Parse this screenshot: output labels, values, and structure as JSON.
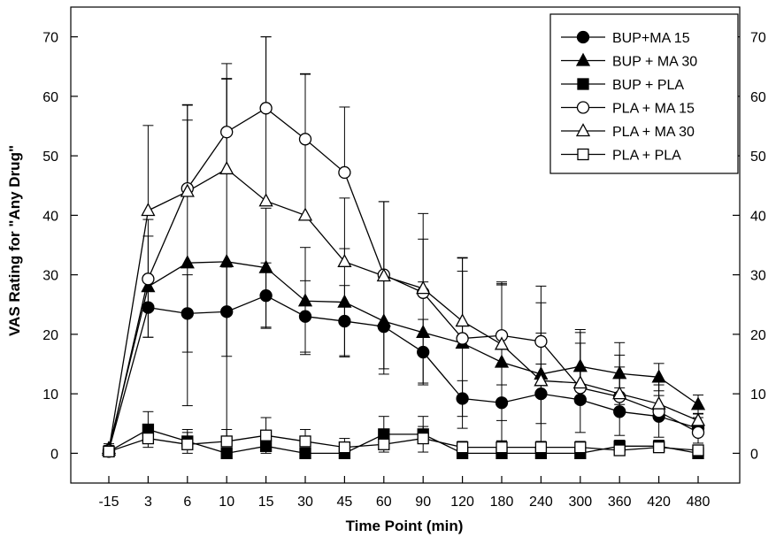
{
  "chart_data": {
    "type": "line",
    "xlabel": "Time Point (min)",
    "ylabel": "VAS Rating for \"Any Drug\"",
    "categories": [
      "-15",
      "3",
      "6",
      "10",
      "15",
      "30",
      "45",
      "60",
      "90",
      "120",
      "180",
      "240",
      "300",
      "360",
      "420",
      "480"
    ],
    "ylim": [
      -5,
      75
    ],
    "yticks": [
      0,
      10,
      20,
      30,
      40,
      50,
      60,
      70
    ],
    "grid": false,
    "legend": "top-right",
    "series": [
      {
        "name": "BUP+MA 15",
        "marker": "circle",
        "filled": true,
        "values": [
          0.5,
          24.5,
          23.5,
          23.8,
          26.5,
          23.0,
          22.2,
          21.3,
          17.0,
          9.2,
          8.5,
          10.0,
          9.0,
          7.0,
          6.2,
          4.2
        ],
        "errors": [
          0.8,
          5.0,
          6.5,
          7.5,
          5.5,
          6.0,
          6.0,
          8.0,
          5.5,
          3.0,
          3.0,
          5.0,
          5.5,
          4.0,
          3.5,
          2.5
        ]
      },
      {
        "name": "BUP + MA 30",
        "marker": "triangle",
        "filled": true,
        "values": [
          0.8,
          28.0,
          32.0,
          32.2,
          31.2,
          25.6,
          25.4,
          22.2,
          20.3,
          18.5,
          15.3,
          13.3,
          14.6,
          13.4,
          12.8,
          8.2
        ],
        "errors": [
          0.8,
          8.5,
          24.0,
          30.7,
          10.0,
          9.0,
          9.0,
          8.0,
          8.5,
          14.3,
          13.2,
          12.0,
          6.2,
          5.2,
          2.3,
          1.6
        ]
      },
      {
        "name": "BUP + PLA",
        "marker": "square",
        "filled": true,
        "values": [
          0.3,
          4.0,
          2.0,
          0.0,
          1.2,
          0.0,
          0.0,
          3.2,
          3.2,
          0.0,
          0.0,
          0.0,
          0.0,
          1.2,
          1.2,
          0.0
        ],
        "errors": [
          0.5,
          3.0,
          2.0,
          0.5,
          1.5,
          0.5,
          0.5,
          3.0,
          3.0,
          0.5,
          0.5,
          0.5,
          0.5,
          1.0,
          1.0,
          0.5
        ]
      },
      {
        "name": "PLA + MA 15",
        "marker": "circle",
        "filled": false,
        "values": [
          0.3,
          29.3,
          44.5,
          54.0,
          58.0,
          52.8,
          47.2,
          30.0,
          27.0,
          19.3,
          19.8,
          18.8,
          11.0,
          9.5,
          7.0,
          3.5
        ],
        "errors": [
          0.5,
          10.0,
          14.0,
          11.5,
          12.0,
          11.0,
          11.0,
          12.3,
          13.3,
          11.3,
          8.5,
          9.3,
          7.5,
          5.0,
          4.5,
          2.5
        ]
      },
      {
        "name": "PLA + MA 30",
        "marker": "triangle",
        "filled": false,
        "values": [
          0.5,
          40.8,
          44.0,
          47.8,
          42.4,
          40.0,
          32.2,
          29.8,
          27.7,
          22.2,
          18.3,
          12.2,
          11.8,
          10.0,
          8.3,
          5.5
        ],
        "errors": [
          0.6,
          14.3,
          14.6,
          15.2,
          27.6,
          23.7,
          10.7,
          12.5,
          8.3,
          10.7,
          10.5,
          8.0,
          8.5,
          6.5,
          4.0,
          2.0
        ]
      },
      {
        "name": "PLA + PLA",
        "marker": "square",
        "filled": false,
        "values": [
          0.3,
          2.5,
          1.5,
          2.0,
          3.0,
          2.0,
          1.0,
          1.5,
          2.5,
          1.0,
          1.0,
          1.0,
          1.0,
          0.5,
          1.0,
          0.5
        ],
        "errors": [
          0.5,
          2.0,
          2.0,
          2.0,
          3.0,
          2.0,
          1.5,
          2.0,
          2.0,
          1.0,
          1.0,
          1.0,
          1.0,
          0.8,
          1.0,
          0.8
        ]
      }
    ]
  }
}
